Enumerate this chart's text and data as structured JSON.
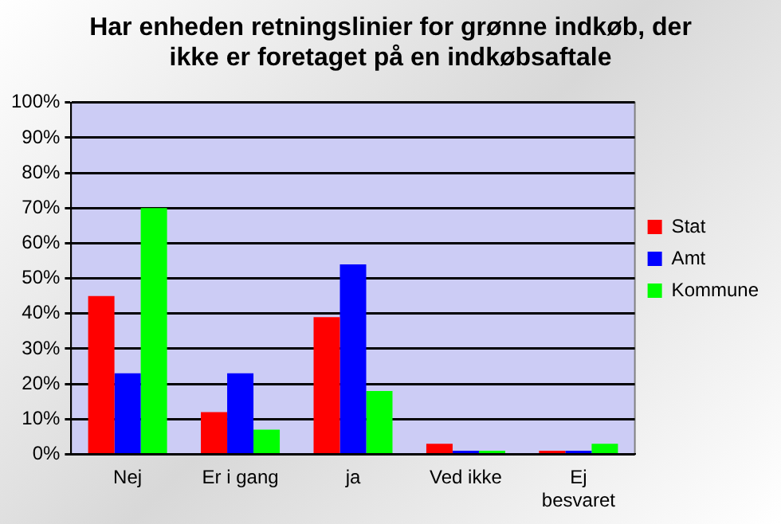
{
  "chart_data": {
    "type": "bar",
    "title": "Har enheden retningslinier for grønne indkøb, der ikke er foretaget på en indkøbsaftale",
    "categories": [
      "Nej",
      "Er i gang",
      "ja",
      "Ved ikke",
      "Ej besvaret"
    ],
    "series": [
      {
        "name": "Stat",
        "color": "#ff0000",
        "values": [
          45,
          12,
          39,
          3,
          1
        ]
      },
      {
        "name": "Amt",
        "color": "#0000ff",
        "values": [
          23,
          23,
          54,
          1,
          1
        ]
      },
      {
        "name": "Kommune",
        "color": "#00ff00",
        "values": [
          70,
          7,
          18,
          1,
          3
        ]
      }
    ],
    "ylim": [
      0,
      100
    ],
    "yticks": [
      {
        "value": 0,
        "label": "0%"
      },
      {
        "value": 10,
        "label": "10%"
      },
      {
        "value": 20,
        "label": "20%"
      },
      {
        "value": 30,
        "label": "30%"
      },
      {
        "value": 40,
        "label": "40%"
      },
      {
        "value": 50,
        "label": "50%"
      },
      {
        "value": 60,
        "label": "60%"
      },
      {
        "value": 70,
        "label": "70%"
      },
      {
        "value": 80,
        "label": "80%"
      },
      {
        "value": 90,
        "label": "90%"
      },
      {
        "value": 100,
        "label": "100%"
      }
    ],
    "grid": "y",
    "legend": "right"
  }
}
